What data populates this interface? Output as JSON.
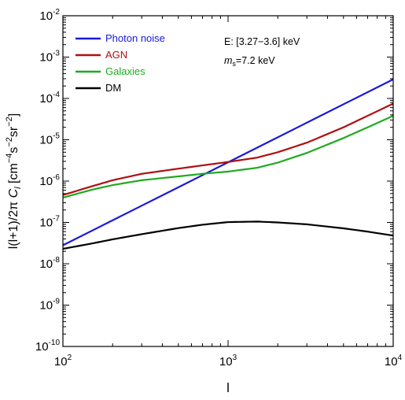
{
  "chart_data": {
    "type": "line",
    "xlabel": "l",
    "ylabel_parts": {
      "a": "l(l+1)/2π ",
      "c": "C",
      "sub": "l",
      "unit_open": "  [cm",
      "exp1": "−4",
      "s": "s",
      "exp2": "−2",
      "sr": "sr",
      "exp3": "−2",
      "close": "]"
    },
    "x_scale": "log",
    "y_scale": "log",
    "xlim": [
      100,
      10000
    ],
    "ylim": [
      1e-10,
      0.01
    ],
    "x_ticks": [
      {
        "value": 100,
        "base": "10",
        "exp": "2"
      },
      {
        "value": 1000,
        "base": "10",
        "exp": "3"
      },
      {
        "value": 10000,
        "base": "10",
        "exp": "4"
      }
    ],
    "y_ticks": [
      {
        "value": 1e-10,
        "base": "10",
        "exp": "-10"
      },
      {
        "value": 1e-09,
        "base": "10",
        "exp": "-9"
      },
      {
        "value": 1e-08,
        "base": "10",
        "exp": "-8"
      },
      {
        "value": 1e-07,
        "base": "10",
        "exp": "-7"
      },
      {
        "value": 1e-06,
        "base": "10",
        "exp": "-6"
      },
      {
        "value": 1e-05,
        "base": "10",
        "exp": "-5"
      },
      {
        "value": 0.0001,
        "base": "10",
        "exp": "-4"
      },
      {
        "value": 0.001,
        "base": "10",
        "exp": "-3"
      },
      {
        "value": 0.01,
        "base": "10",
        "exp": "-2"
      }
    ],
    "annotations": [
      {
        "text": "E:  [3.27−3.6] keV"
      },
      {
        "text_italic": "m",
        "sub": "s",
        "rest": "=7.2 keV"
      }
    ],
    "legend_position": "top-left",
    "series": [
      {
        "name": "Photon noise",
        "color": "#1a1adc",
        "x": [
          100,
          10000
        ],
        "y": [
          2.8e-08,
          0.00029
        ]
      },
      {
        "name": "AGN",
        "color": "#b01010",
        "x": [
          100,
          150,
          200,
          300,
          500,
          700,
          1000,
          1500,
          2000,
          3000,
          5000,
          7000,
          10000
        ],
        "y": [
          4.6e-07,
          7.5e-07,
          1.05e-06,
          1.5e-06,
          2e-06,
          2.4e-06,
          2.9e-06,
          3.7e-06,
          5e-06,
          8.5e-06,
          2e-05,
          3.8e-05,
          7.5e-05
        ]
      },
      {
        "name": "Galaxies",
        "color": "#1faa1f",
        "x": [
          100,
          150,
          200,
          300,
          500,
          700,
          1000,
          1500,
          2000,
          3000,
          5000,
          7000,
          10000
        ],
        "y": [
          4e-07,
          6.2e-07,
          8e-07,
          1.05e-06,
          1.3e-06,
          1.5e-06,
          1.7e-06,
          2.1e-06,
          2.8e-06,
          4.8e-06,
          1.1e-05,
          2e-05,
          3.8e-05
        ]
      },
      {
        "name": "DM",
        "color": "#000000",
        "x": [
          100,
          150,
          200,
          300,
          500,
          700,
          1000,
          1500,
          2000,
          3000,
          5000,
          7000,
          10000
        ],
        "y": [
          2.3e-08,
          3.1e-08,
          3.9e-08,
          5.2e-08,
          7.3e-08,
          8.8e-08,
          1.02e-07,
          1.05e-07,
          1e-07,
          9e-08,
          7.2e-08,
          6e-08,
          4.8e-08
        ]
      }
    ]
  }
}
